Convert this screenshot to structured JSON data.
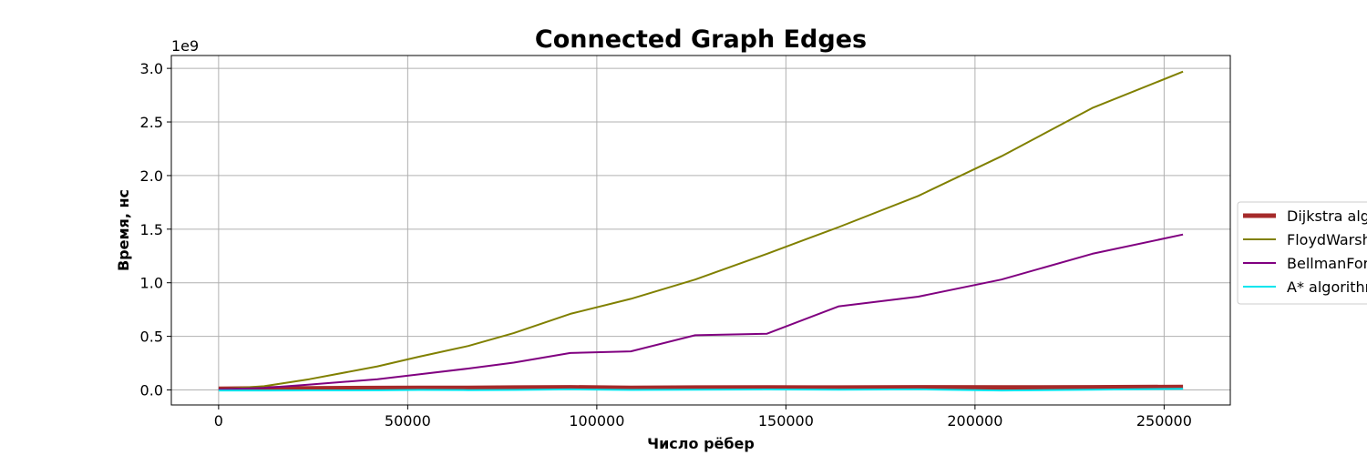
{
  "chart_data": {
    "type": "line",
    "title": "Connected Graph Edges",
    "xlabel": "Число рёбер",
    "ylabel": "Время, нс",
    "y_offset_label": "1e9",
    "xlim": [
      -12500,
      267500
    ],
    "ylim": [
      -0.14,
      3.12
    ],
    "xticks": [
      0,
      50000,
      100000,
      150000,
      200000,
      250000
    ],
    "xtick_labels": [
      "0",
      "50000",
      "100000",
      "150000",
      "200000",
      "250000"
    ],
    "yticks": [
      0.0,
      0.5,
      1.0,
      1.5,
      2.0,
      2.5,
      3.0
    ],
    "ytick_labels": [
      "0.0",
      "0.5",
      "1.0",
      "1.5",
      "2.0",
      "2.5",
      "3.0"
    ],
    "y_unit_multiplier": 1000000000.0,
    "grid": true,
    "legend_position": "right, outside plot",
    "x": [
      0,
      12000,
      24000,
      42000,
      53000,
      66000,
      78000,
      93000,
      109000,
      126000,
      145000,
      164000,
      185000,
      207000,
      231000,
      255000
    ],
    "series": [
      {
        "name": "Dijkstra algorithm",
        "color": "#a52a2a",
        "line_width": 5,
        "values": [
          0.01,
          0.015,
          0.015,
          0.018,
          0.02,
          0.02,
          0.022,
          0.025,
          0.02,
          0.022,
          0.023,
          0.022,
          0.025,
          0.023,
          0.025,
          0.028
        ]
      },
      {
        "name": "FloydWarshall algorithm",
        "color": "#808000",
        "line_width": 2,
        "values": [
          0.005,
          0.035,
          0.1,
          0.22,
          0.31,
          0.41,
          0.53,
          0.71,
          0.85,
          1.03,
          1.27,
          1.52,
          1.81,
          2.18,
          2.63,
          2.97
        ]
      },
      {
        "name": "BellmanFord algorithm",
        "color": "#800080",
        "line_width": 2,
        "values": [
          0.005,
          0.02,
          0.05,
          0.1,
          0.145,
          0.2,
          0.255,
          0.345,
          0.36,
          0.51,
          0.525,
          0.78,
          0.87,
          1.03,
          1.27,
          1.45
        ]
      },
      {
        "name": "A* algorithm",
        "color": "#00e5ee",
        "line_width": 2,
        "values": [
          -0.005,
          -0.005,
          -0.004,
          -0.003,
          0.0,
          -0.002,
          0.0,
          0.005,
          0.0,
          0.003,
          0.004,
          0.003,
          0.005,
          -0.005,
          0.003,
          0.01
        ]
      }
    ]
  }
}
